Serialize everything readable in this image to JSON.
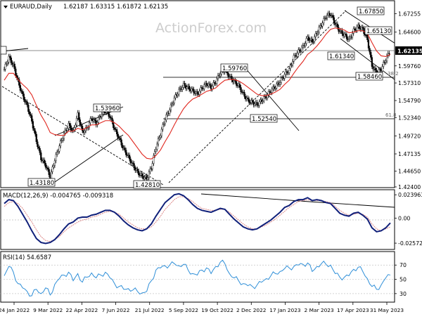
{
  "chart_data": [
    {
      "type": "candlestick",
      "title": "EURAUD,Daily",
      "ohlc_readout": [
        "1.62187",
        "1.63315",
        "1.61872",
        "1.62135"
      ],
      "watermark": "ActionForex.com",
      "current_price": "1.62135",
      "y_ticks": [
        "1.67255",
        "1.64600",
        "1.62135",
        "1.59760",
        "1.57310",
        "1.54790",
        "1.52340",
        "1.49720",
        "1.47135",
        "1.44650",
        "1.42400"
      ],
      "x_ticks": [
        "24 Jan 2022",
        "9 Mar 2022",
        "22 Apr 2022",
        "7 Jun 2022",
        "21 Jul 2022",
        "5 Sep 2022",
        "19 Oct 2022",
        "2 Dec 2022",
        "17 Jan 2023",
        "2 Mar 2023",
        "17 Apr 2023",
        "31 May 2023"
      ],
      "price_labels": [
        "1.67850",
        "1.65130",
        "1.61340",
        "1.58460",
        "1.59760",
        "1.52540",
        "1.53960",
        "1.43180",
        "1.42810"
      ],
      "fib_labels": [
        "38.2",
        "61.8"
      ],
      "close_series_approx": [
        1.593,
        1.61,
        1.598,
        1.575,
        1.555,
        1.54,
        1.518,
        1.49,
        1.465,
        1.455,
        1.438,
        1.463,
        1.483,
        1.5,
        1.513,
        1.503,
        1.528,
        1.503,
        1.508,
        1.523,
        1.515,
        1.527,
        1.533,
        1.525,
        1.507,
        1.493,
        1.478,
        1.467,
        1.455,
        1.445,
        1.439,
        1.436,
        1.452,
        1.481,
        1.5,
        1.522,
        1.535,
        1.551,
        1.562,
        1.57,
        1.566,
        1.562,
        1.557,
        1.566,
        1.572,
        1.567,
        1.575,
        1.588,
        1.592,
        1.582,
        1.575,
        1.569,
        1.557,
        1.548,
        1.545,
        1.542,
        1.548,
        1.554,
        1.562,
        1.568,
        1.575,
        1.585,
        1.592,
        1.61,
        1.618,
        1.625,
        1.638,
        1.632,
        1.645,
        1.657,
        1.669,
        1.672,
        1.658,
        1.647,
        1.642,
        1.635,
        1.648,
        1.654,
        1.65,
        1.635,
        1.598,
        1.587,
        1.593,
        1.607,
        1.62
      ],
      "ma_series_approx": [
        1.577,
        1.587,
        1.587,
        1.578,
        1.571,
        1.565,
        1.556,
        1.541,
        1.527,
        1.516,
        1.502,
        1.499,
        1.498,
        1.498,
        1.504,
        1.504,
        1.508,
        1.506,
        1.509,
        1.513,
        1.513,
        1.516,
        1.519,
        1.519,
        1.516,
        1.511,
        1.504,
        1.498,
        1.489,
        1.48,
        1.471,
        1.465,
        1.464,
        1.469,
        1.477,
        1.489,
        1.5,
        1.513,
        1.525,
        1.536,
        1.544,
        1.55,
        1.553,
        1.557,
        1.561,
        1.563,
        1.566,
        1.572,
        1.577,
        1.578,
        1.578,
        1.576,
        1.572,
        1.567,
        1.562,
        1.557,
        1.555,
        1.555,
        1.557,
        1.56,
        1.564,
        1.571,
        1.577,
        1.587,
        1.596,
        1.604,
        1.614,
        1.619,
        1.626,
        1.634,
        1.643,
        1.65,
        1.652,
        1.651,
        1.649,
        1.645,
        1.646,
        1.648,
        1.648,
        1.644,
        1.631,
        1.619,
        1.612,
        1.611,
        1.614
      ]
    },
    {
      "type": "line",
      "title": "MACD(12,26,9) -0.004765 -0.009318",
      "y_ticks": [
        "0.023963",
        "0.00",
        "-0.025726"
      ],
      "macd_approx": [
        0.015,
        0.019,
        0.018,
        0.012,
        0.004,
        -0.004,
        -0.013,
        -0.021,
        -0.025,
        -0.026,
        -0.025,
        -0.022,
        -0.017,
        -0.011,
        -0.006,
        -0.004,
        0.0,
        0.001,
        0.001,
        0.003,
        0.004,
        0.006,
        0.008,
        0.008,
        0.006,
        0.002,
        -0.003,
        -0.007,
        -0.01,
        -0.012,
        -0.013,
        -0.011,
        -0.006,
        0.002,
        0.009,
        0.016,
        0.02,
        0.024,
        0.025,
        0.023,
        0.019,
        0.014,
        0.01,
        0.008,
        0.007,
        0.006,
        0.008,
        0.01,
        0.009,
        0.004,
        -0.001,
        -0.005,
        -0.009,
        -0.011,
        -0.012,
        -0.011,
        -0.008,
        -0.005,
        -0.002,
        0.002,
        0.006,
        0.011,
        0.013,
        0.017,
        0.019,
        0.019,
        0.021,
        0.018,
        0.019,
        0.018,
        0.016,
        0.015,
        0.01,
        0.005,
        0.003,
        0.002,
        0.005,
        0.006,
        0.003,
        -0.001,
        -0.01,
        -0.014,
        -0.013,
        -0.01,
        -0.005
      ],
      "signal_approx": [
        0.012,
        0.016,
        0.017,
        0.015,
        0.01,
        0.003,
        -0.004,
        -0.012,
        -0.019,
        -0.023,
        -0.024,
        -0.022,
        -0.019,
        -0.014,
        -0.01,
        -0.007,
        -0.004,
        -0.002,
        -0.001,
        0.001,
        0.002,
        0.004,
        0.006,
        0.007,
        0.006,
        0.004,
        0.0,
        -0.004,
        -0.007,
        -0.01,
        -0.011,
        -0.011,
        -0.009,
        -0.004,
        0.002,
        0.009,
        0.014,
        0.019,
        0.022,
        0.022,
        0.02,
        0.017,
        0.013,
        0.01,
        0.009,
        0.008,
        0.008,
        0.009,
        0.009,
        0.006,
        0.002,
        -0.002,
        -0.006,
        -0.009,
        -0.011,
        -0.011,
        -0.009,
        -0.007,
        -0.004,
        -0.001,
        0.003,
        0.007,
        0.011,
        0.014,
        0.017,
        0.018,
        0.019,
        0.018,
        0.018,
        0.018,
        0.017,
        0.016,
        0.012,
        0.008,
        0.005,
        0.003,
        0.004,
        0.005,
        0.004,
        0.001,
        -0.006,
        -0.011,
        -0.013,
        -0.011,
        -0.009
      ]
    },
    {
      "type": "line",
      "title": "RSI(14) 54.6587",
      "y_ticks": [
        "70",
        "50",
        "30"
      ],
      "rsi_approx": [
        55,
        68,
        60,
        44,
        38,
        33,
        27,
        36,
        30,
        38,
        28,
        43,
        51,
        56,
        60,
        48,
        58,
        46,
        53,
        59,
        52,
        56,
        60,
        52,
        44,
        40,
        36,
        37,
        35,
        33,
        31,
        33,
        48,
        63,
        66,
        69,
        70,
        72,
        69,
        71,
        63,
        58,
        56,
        63,
        66,
        58,
        68,
        74,
        72,
        58,
        52,
        48,
        44,
        41,
        40,
        42,
        46,
        51,
        55,
        58,
        61,
        65,
        66,
        68,
        70,
        71,
        73,
        61,
        68,
        72,
        71,
        70,
        58,
        53,
        53,
        55,
        64,
        67,
        61,
        51,
        40,
        36,
        42,
        52,
        56
      ]
    }
  ]
}
